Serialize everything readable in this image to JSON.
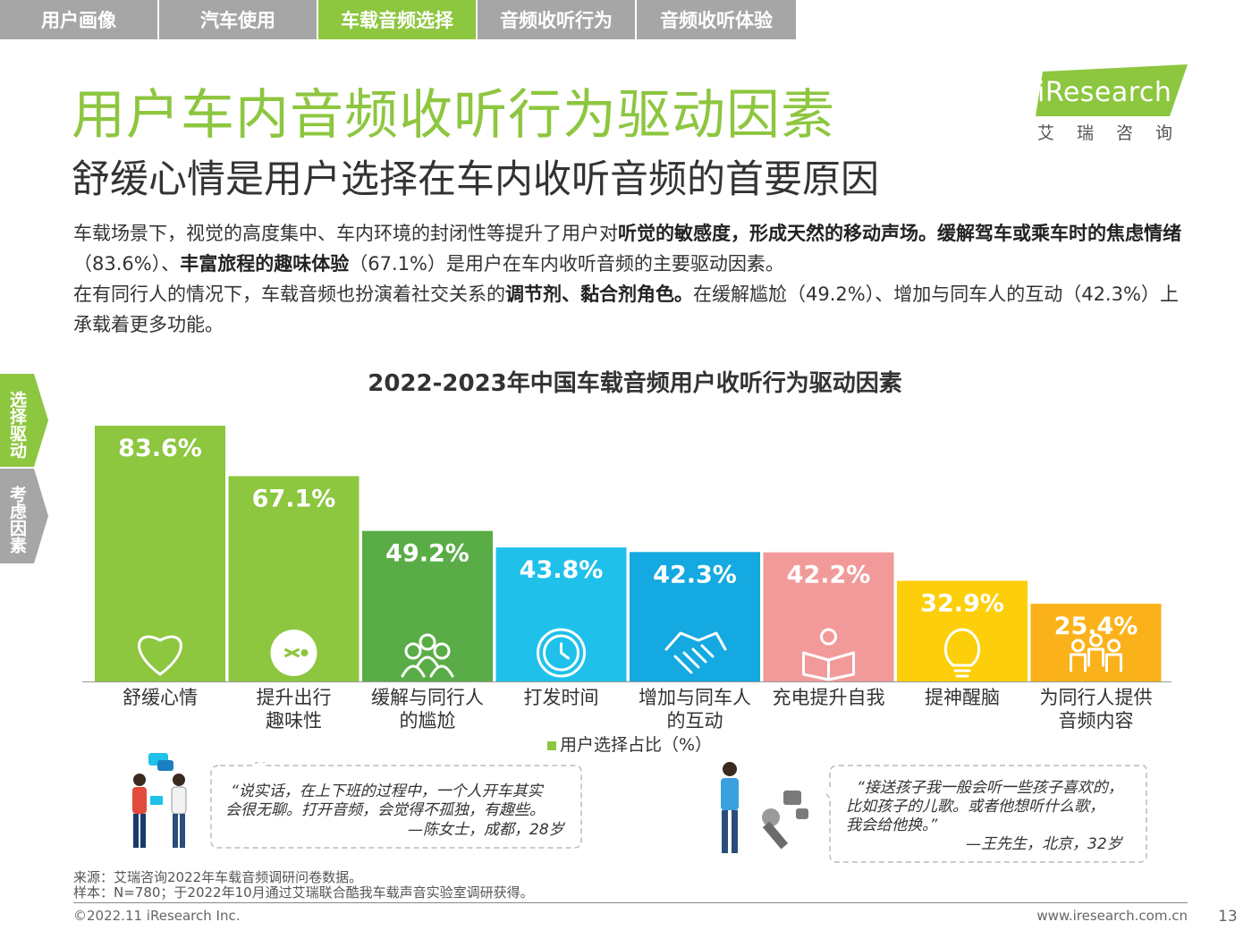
{
  "nav": {
    "tabs": [
      {
        "label": "用户画像",
        "active": false
      },
      {
        "label": "汽车使用",
        "active": false
      },
      {
        "label": "车载音频选择",
        "active": true
      },
      {
        "label": "音频收听行为",
        "active": false
      },
      {
        "label": "音频收听体验",
        "active": false
      }
    ]
  },
  "logo": {
    "brand": "iResearch",
    "sub": "艾瑞咨询"
  },
  "header": {
    "title": "用户车内音频收听行为驱动因素",
    "subtitle": "舒缓心情是用户选择在车内收听音频的首要原因"
  },
  "body": {
    "p1_a": "车载场景下，视觉的高度集中、车内环境的封闭性等提升了用户对",
    "p1_b": "听觉的敏感度，形成天然的移动声场。缓解驾车或乘车时的焦虑情绪",
    "p1_c": "（83.6%）、",
    "p1_d": "丰富旅程的趣味体验",
    "p1_e": "（67.1%）是用户在车内收听音频的主要驱动因素。",
    "p2_a": "在有同行人的情况下，车载音频也扮演着社交关系的",
    "p2_b": "调节剂、黏合剂角色。",
    "p2_c": "在缓解尴尬（49.2%）、增加与同车人的互动（42.3%）上承载着更多功能。"
  },
  "side_tabs": {
    "tab1": "选择驱动",
    "tab2": "考虑因素"
  },
  "chart_data": {
    "type": "bar",
    "title": "2022-2023年中国车载音频用户收听行为驱动因素",
    "categories": [
      "舒缓心情",
      "提升出行趣味性",
      "缓解与同行人的尴尬",
      "打发时间",
      "增加与同车人的互动",
      "充电提升自我",
      "提神醒脑",
      "为同行人提供音频内容"
    ],
    "category_lines": [
      [
        "舒缓心情"
      ],
      [
        "提升出行",
        "趣味性"
      ],
      [
        "缓解与同行人",
        "的尴尬"
      ],
      [
        "打发时间"
      ],
      [
        "增加与同车人",
        "的互动"
      ],
      [
        "充电提升自我"
      ],
      [
        "提神醒脑"
      ],
      [
        "为同行人提供",
        "音频内容"
      ]
    ],
    "values": [
      83.6,
      67.1,
      49.2,
      43.8,
      42.3,
      42.2,
      32.9,
      25.4
    ],
    "value_labels": [
      "83.6%",
      "67.1%",
      "49.2%",
      "43.8%",
      "42.3%",
      "42.2%",
      "32.9%",
      "25.4%"
    ],
    "colors": [
      "#8dc63f",
      "#8dc63f",
      "#5aad46",
      "#1fc1ea",
      "#14a9e0",
      "#f29a9a",
      "#fdcf0a",
      "#fbb21a"
    ],
    "icons": [
      "heart-icon",
      "face-icon",
      "group-icon",
      "clock-icon",
      "handshake-icon",
      "reading-icon",
      "bulb-icon",
      "family-icon"
    ],
    "legend": "用户选择占比（%）",
    "ylim": [
      0,
      83.6
    ],
    "xlabel": "",
    "ylabel": ""
  },
  "quotes": {
    "q1_l1": "“说实话，在上下班的过程中，一个人开车其实",
    "q1_l2": "会很无聊。打开音频，会觉得不孤独，有趣些。",
    "q1_l3": "—陈女士，成都，28岁",
    "q2_l1": "“接送孩子我一般会听一些孩子喜欢的，",
    "q2_l2": "比如孩子的儿歌。或者他想听什么歌，",
    "q2_l3": "我会给他换。”",
    "q2_l4": "—王先生，北京，32岁"
  },
  "footer": {
    "source": "来源：艾瑞咨询2022年车载音频调研问卷数据。",
    "sample": "样本：N=780；于2022年10月通过艾瑞联合酷我车载声音实验室调研获得。",
    "copyright": "©2022.11 iResearch Inc.",
    "website": "www.iresearch.com.cn",
    "page": "13"
  }
}
